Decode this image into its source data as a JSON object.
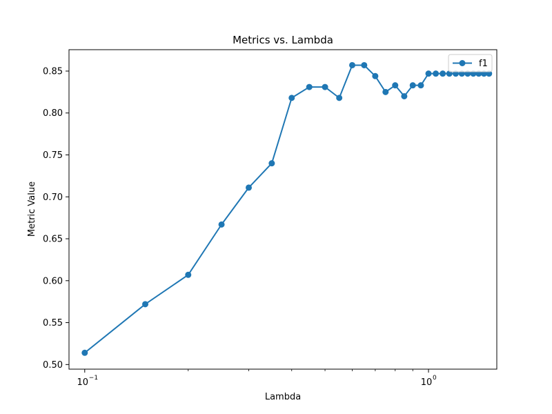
{
  "chart_data": {
    "type": "line",
    "title": "Metrics vs. Lambda",
    "xlabel": "Lambda",
    "ylabel": "Metric Value",
    "xscale": "log",
    "xlim": [
      0.09,
      1.58
    ],
    "ylim": [
      0.4945,
      0.8755
    ],
    "grid": false,
    "legend_position": "top-right",
    "xticks": [
      {
        "value": 0.1,
        "base": "10",
        "exp": "−1"
      },
      {
        "value": 1.0,
        "base": "10",
        "exp": "0"
      }
    ],
    "yticks": [
      {
        "value": 0.5,
        "label": "0.50"
      },
      {
        "value": 0.55,
        "label": "0.55"
      },
      {
        "value": 0.6,
        "label": "0.60"
      },
      {
        "value": 0.65,
        "label": "0.65"
      },
      {
        "value": 0.7,
        "label": "0.70"
      },
      {
        "value": 0.75,
        "label": "0.75"
      },
      {
        "value": 0.8,
        "label": "0.80"
      },
      {
        "value": 0.85,
        "label": "0.85"
      }
    ],
    "series": [
      {
        "name": "f1",
        "color": "#1f77b4",
        "marker": "circle",
        "x": [
          0.1,
          0.15,
          0.2,
          0.25,
          0.3,
          0.35,
          0.4,
          0.45,
          0.5,
          0.55,
          0.6,
          0.65,
          0.7,
          0.75,
          0.8,
          0.85,
          0.9,
          0.95,
          1.0,
          1.05,
          1.1,
          1.15,
          1.2,
          1.25,
          1.3,
          1.35,
          1.4,
          1.45,
          1.5
        ],
        "y": [
          0.514,
          0.572,
          0.607,
          0.667,
          0.711,
          0.74,
          0.818,
          0.831,
          0.831,
          0.818,
          0.857,
          0.857,
          0.844,
          0.825,
          0.833,
          0.82,
          0.833,
          0.833,
          0.847,
          0.847,
          0.847,
          0.847,
          0.847,
          0.847,
          0.847,
          0.847,
          0.847,
          0.847,
          0.847
        ]
      }
    ]
  }
}
